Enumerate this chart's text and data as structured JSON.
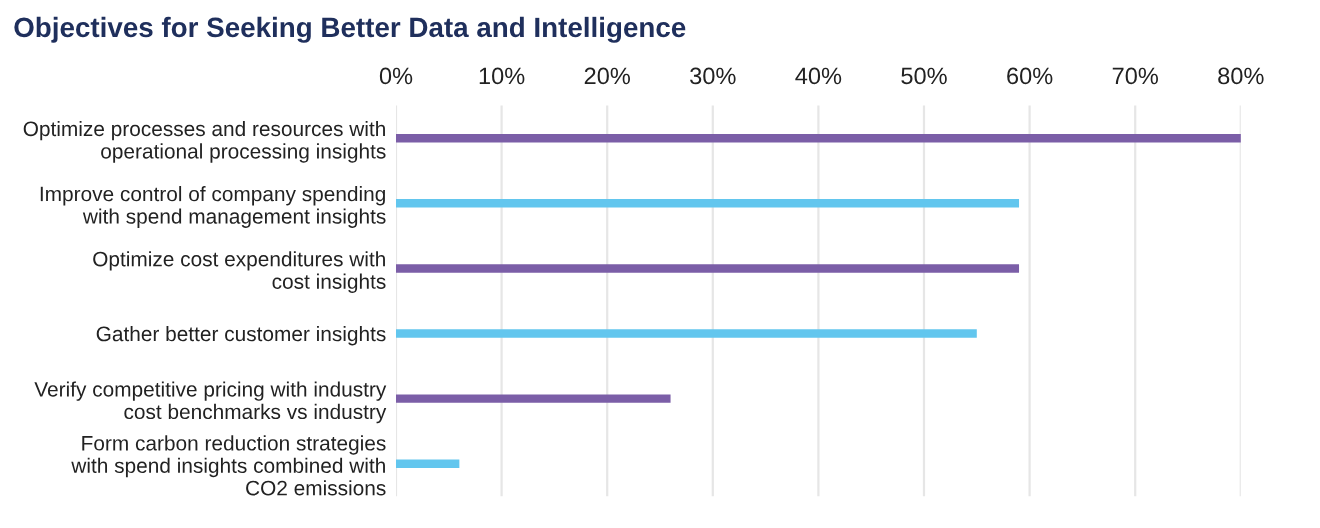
{
  "chart_data": {
    "type": "bar",
    "orientation": "horizontal",
    "title": "Objectives for Seeking Better Data and Intelligence",
    "categories": [
      "Optimize processes and resources with\noperational processing insights",
      "Improve control of company spending\nwith spend management insights",
      "Optimize cost expenditures with\ncost insights",
      "Gather better customer insights",
      "Verify competitive pricing with industry\ncost benchmarks vs industry",
      "Form carbon reduction strategies\nwith spend insights combined with\nCO2 emissions"
    ],
    "values": [
      80,
      59,
      59,
      55,
      26,
      6
    ],
    "colors": [
      "#7b5ea7",
      "#62c6ee",
      "#7b5ea7",
      "#62c6ee",
      "#7b5ea7",
      "#62c6ee"
    ],
    "xlim": [
      0,
      80
    ],
    "xticks": [
      {
        "value": 0,
        "label": "0%"
      },
      {
        "value": 10,
        "label": "10%"
      },
      {
        "value": 20,
        "label": "20%"
      },
      {
        "value": 30,
        "label": "30%"
      },
      {
        "value": 40,
        "label": "40%"
      },
      {
        "value": 50,
        "label": "50%"
      },
      {
        "value": 60,
        "label": "60%"
      },
      {
        "value": 70,
        "label": "70%"
      },
      {
        "value": 80,
        "label": "80%"
      }
    ],
    "grid": "x",
    "legend": false
  }
}
